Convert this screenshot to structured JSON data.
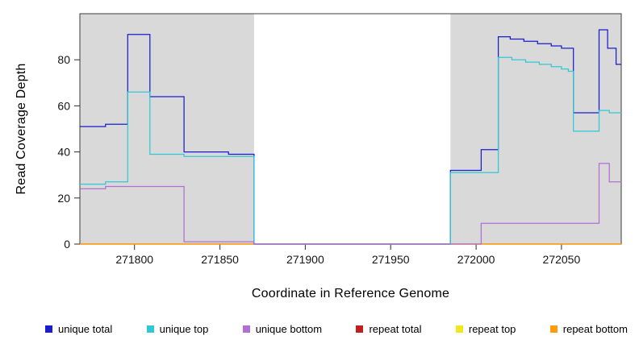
{
  "legend": {
    "items": [
      {
        "label": "unique total",
        "color": "#1b1bd0"
      },
      {
        "label": "unique top",
        "color": "#2fc9d6"
      },
      {
        "label": "unique bottom",
        "color": "#af6fd6"
      },
      {
        "label": "repeat total",
        "color": "#c01f1f"
      },
      {
        "label": "repeat top",
        "color": "#f2e71d"
      },
      {
        "label": "repeat bottom",
        "color": "#ff9d09"
      }
    ]
  },
  "chart_data": {
    "type": "line",
    "title": "",
    "xlabel": "Coordinate in Reference Genome",
    "ylabel": "Read Coverage Depth",
    "xlim": [
      271768,
      272085
    ],
    "ylim": [
      0,
      100
    ],
    "xticks": [
      271800,
      271850,
      271900,
      271950,
      272000,
      272050
    ],
    "yticks": [
      0,
      20,
      40,
      60,
      80
    ],
    "grid": false,
    "legend_position": "bottom",
    "step_lines": true,
    "shade_color": "#d9d9d9",
    "shaded_regions": [
      [
        271768,
        271870
      ],
      [
        271985,
        272085
      ]
    ],
    "series": [
      {
        "name": "repeat total",
        "color": "#c01f1f",
        "step": true,
        "points": [
          [
            271768,
            0
          ]
        ]
      },
      {
        "name": "repeat top",
        "color": "#f2e71d",
        "step": true,
        "points": [
          [
            271768,
            0
          ]
        ]
      },
      {
        "name": "repeat bottom",
        "color": "#ff9d09",
        "step": true,
        "points": [
          [
            271768,
            0
          ]
        ]
      },
      {
        "name": "unique total",
        "color": "#1b1bd0",
        "step": true,
        "points": [
          [
            271768,
            51
          ],
          [
            271783,
            52
          ],
          [
            271796,
            91
          ],
          [
            271809,
            64
          ],
          [
            271829,
            40
          ],
          [
            271855,
            39
          ],
          [
            271870,
            0
          ],
          [
            271985,
            32
          ],
          [
            272003,
            41
          ],
          [
            272013,
            90
          ],
          [
            272020,
            89
          ],
          [
            272028,
            88
          ],
          [
            272036,
            87
          ],
          [
            272044,
            86
          ],
          [
            272050,
            85
          ],
          [
            272057,
            57
          ],
          [
            272072,
            93
          ],
          [
            272077,
            85
          ],
          [
            272082,
            78
          ]
        ]
      },
      {
        "name": "unique top",
        "color": "#2fc9d6",
        "step": true,
        "points": [
          [
            271768,
            26
          ],
          [
            271783,
            27
          ],
          [
            271796,
            66
          ],
          [
            271809,
            39
          ],
          [
            271829,
            38
          ],
          [
            271870,
            0
          ],
          [
            271985,
            31
          ],
          [
            272013,
            81
          ],
          [
            272021,
            80
          ],
          [
            272029,
            79
          ],
          [
            272037,
            78
          ],
          [
            272044,
            77
          ],
          [
            272050,
            76
          ],
          [
            272054,
            75
          ],
          [
            272057,
            49
          ],
          [
            272072,
            58
          ],
          [
            272078,
            57
          ]
        ]
      },
      {
        "name": "unique bottom",
        "color": "#af6fd6",
        "step": true,
        "points": [
          [
            271768,
            24
          ],
          [
            271783,
            25
          ],
          [
            271829,
            1
          ],
          [
            271870,
            0
          ],
          [
            272003,
            9
          ],
          [
            272072,
            35
          ],
          [
            272078,
            27
          ]
        ]
      }
    ]
  }
}
